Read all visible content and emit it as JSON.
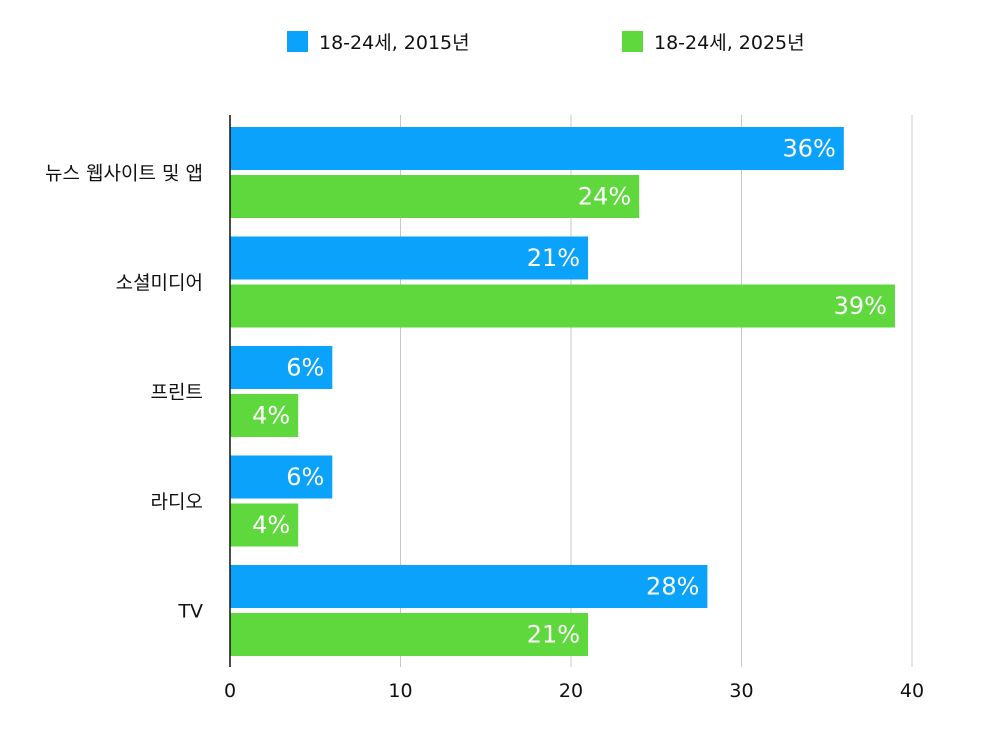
{
  "chart_data": {
    "type": "bar",
    "orientation": "horizontal",
    "categories": [
      "뉴스 웹사이트 및 앱",
      "소셜미디어",
      "프린트",
      "라디오",
      "TV"
    ],
    "series": [
      {
        "name": "18-24세, 2015년",
        "color": "#0aa2fa",
        "values": [
          36,
          21,
          6,
          6,
          28
        ],
        "labels": [
          "36%",
          "21%",
          "6%",
          "6%",
          "28%"
        ]
      },
      {
        "name": "18-24세, 2025년",
        "color": "#5ed83c",
        "values": [
          24,
          39,
          4,
          4,
          21
        ],
        "labels": [
          "24%",
          "39%",
          "4%",
          "4%",
          "21%"
        ]
      }
    ],
    "xlim": [
      0,
      40
    ],
    "xticks": [
      "0",
      "10",
      "20",
      "30",
      "40"
    ],
    "grid": true,
    "legend_position": "top"
  }
}
